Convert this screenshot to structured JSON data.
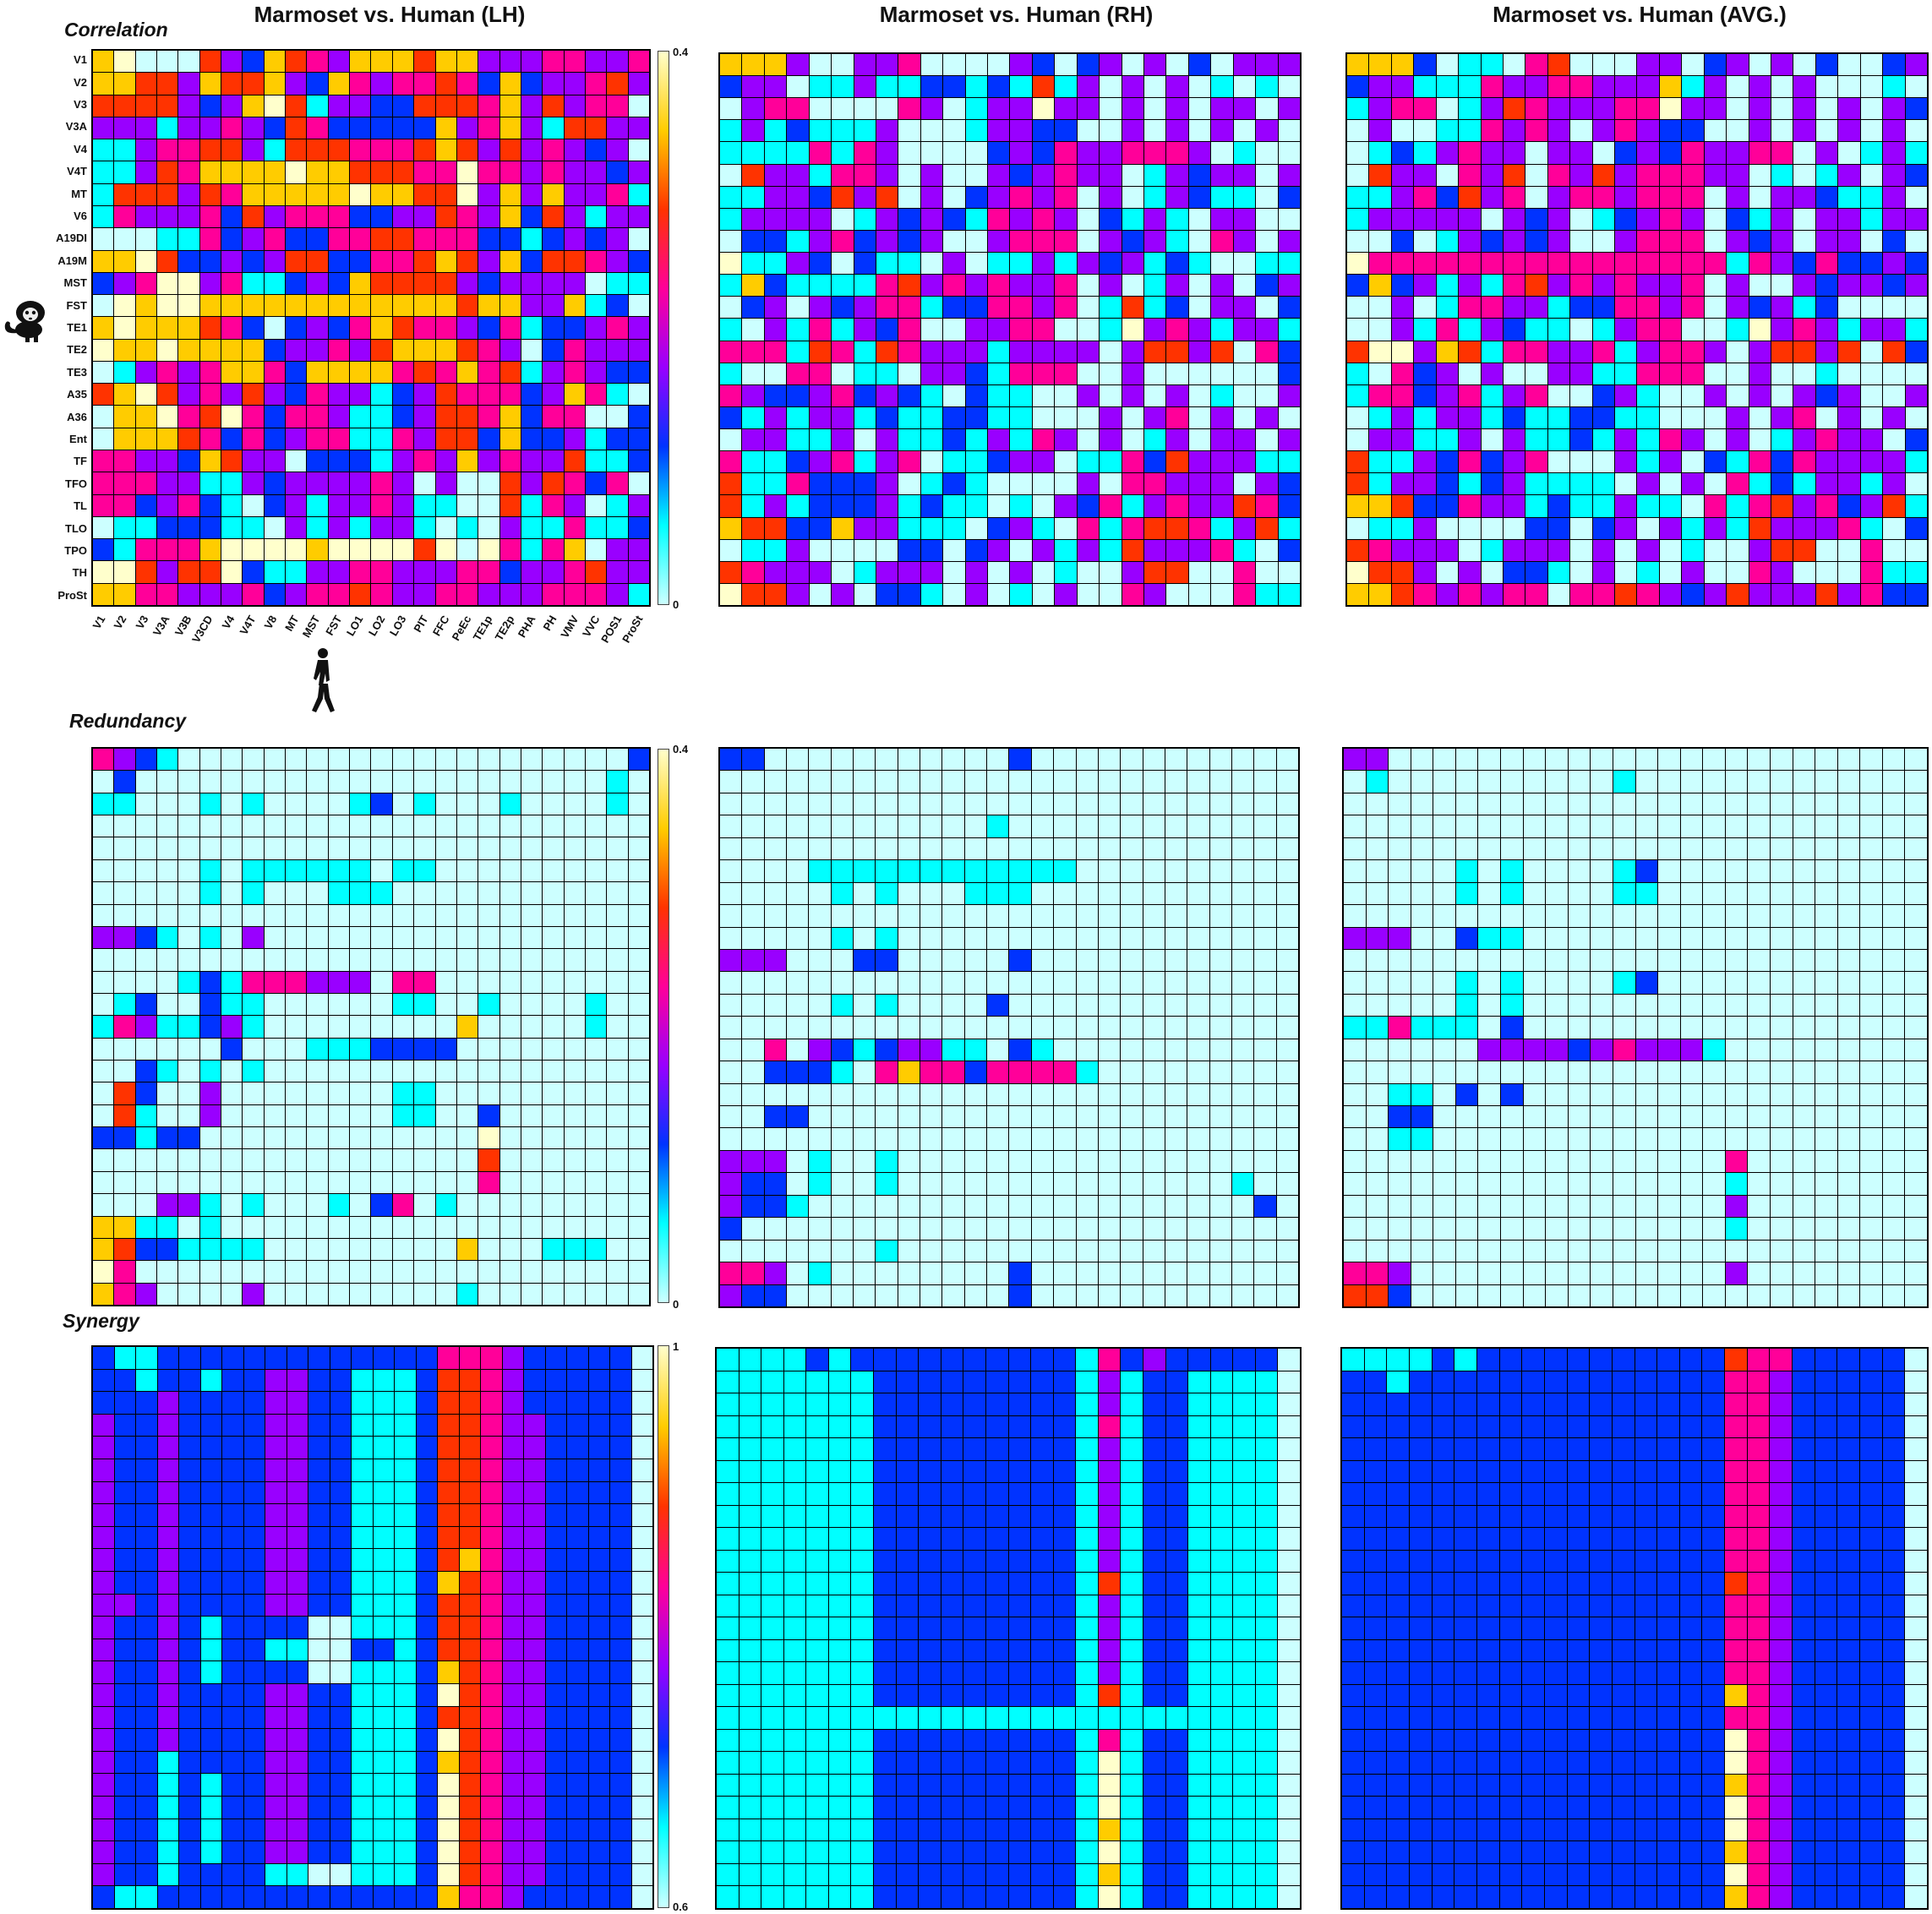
{
  "column_titles": [
    "Marmoset vs. Human (LH)",
    "Marmoset vs. Human (RH)",
    "Marmoset vs. Human (AVG.)"
  ],
  "row_titles": [
    "Correlation",
    "Redundancy",
    "Synergy"
  ],
  "icons": {
    "marmoset": "marmoset-silhouette-icon",
    "human": "walking-human-silhouette-icon"
  },
  "colormap": [
    "#ccffff",
    "#00ffff",
    "#0033ff",
    "#9900ff",
    "#ff0099",
    "#ff3300",
    "#ffcc00",
    "#ffffcc"
  ],
  "chart_data": {
    "type": "heatmap",
    "rows_marmoset": [
      "V1",
      "V2",
      "V3",
      "V3A",
      "V4",
      "V4T",
      "MT",
      "V6",
      "A19DI",
      "A19M",
      "MST",
      "FST",
      "TE1",
      "TE2",
      "TE3",
      "A35",
      "A36",
      "Ent",
      "TF",
      "TFO",
      "TL",
      "TLO",
      "TPO",
      "TH",
      "ProSt"
    ],
    "cols_human": [
      "V1",
      "V2",
      "V3",
      "V3A",
      "V3B",
      "V3CD",
      "V4",
      "V4T",
      "V8",
      "MT",
      "MST",
      "FST",
      "LO1",
      "LO2",
      "LO3",
      "PIT",
      "FFC",
      "PeEc",
      "TE1p",
      "TE2p",
      "PHA",
      "PH",
      "VMV",
      "VVC",
      "POS1",
      "ProSt"
    ],
    "colorbars": [
      {
        "min": 0,
        "max": 0.4
      },
      {
        "min": 0,
        "max": 0.4
      },
      {
        "min": 0.6,
        "max": 1
      }
    ],
    "panels": [
      {
        "row": "Correlation",
        "column": "Marmoset vs. Human (LH)",
        "values": [
          "Y8999643765477767744455445",
          "7766476674375455653734456D",
          "6666434786244336665746455A",
          "4442445436533333745742664D",
          "2245566426665556764645434A",
          "2246577778776665585545443D",
          "2666465777778776684747445B",
          "2544453645553344654736424D",
          "1112253453355665553323434A",
          "7786334346633556764736654C",
          "3458845223437666643444412B",
          "1878877777777777767744723A",
          "7877765313435765543523345D",
          "8778777734454677765413544D",
          "1245457753777756575624543C",
          "6786454643544234655534752A",
          "1778568535542234665735511C",
          "1777653534552254663733423C",
          "5544376441333245474544622C",
          "5554422434444541411646535A",
          "5534532134244542211625412D",
          "1223332214242442121422522C",
          "3255578888788886818525714D",
          "8864668322445544455344564D",
          "7755444534556544554445554B"
        ]
      },
      {
        "row": "Correlation",
        "column": "Marmoset vs. Human (RH)",
        "values": [
          "Y7741144511114313414131444",
          "3441224223323262414141212A",
          "1455111154124484414141441D",
          "2423222411124433114141414A",
          "2222525411113435445554121A",
          "1644255414114345441243441D",
          "2244364614134545141243221C",
          "2444412434325454132421441A",
          "1332453434114555143421541D",
          "8224313221412242434232112B",
          "2732222564545445141241413D",
          "1341434552335545126231441C",
          "2142524351144551128454244B",
          "5552652654442444414664615C",
          "2115512214432555114111111C",
          "5433453432132211414141211D",
          "3242442322332211141451414A",
          "1442241422324254141241441D",
          "5223452451223441225364442B",
          "6225333412321111415544414C",
          "6242333423221214352454465C",
          "7663374422213421525665246B",
          "1224111133134142426444521C",
          "6544412444141412114661151A",
          "8664141332141214115411152B"
        ]
      },
      {
        "row": "Correlation",
        "column": "Marmoset vs. Human (AVG.)",
        "values": [
          "Y7731221561114413414131134",
          "3442225445544472414141112A",
          "2455124654445584414141414C",
          "1411225454145433114141414A",
          "1232454414413435445514124B",
          "1644154615464555441212414C",
          "2245364514554555141443224A",
          "2444441434123454132414424D",
          "1131243434114555143414413A",
          "8555555555555555525435334C",
          "3734242564545445141143443D",
          "1141255442335545143423111A",
          "1142524322124551128454244B",
          "6884762554452455414664616C",
          "2153414114422555114112111A",
          "2553452451134211414143411D",
          "1242442322332211141451414A",
          "1442241422324254141245441C",
          "6224353451114241325354444B",
          "6244323422221414152324424A",
          "7763354423224221525645346B",
          "1224111133134142426444521C",
          "6544412444141412114661151A",
          "8664141332141214115411152B",
          "7765454551556543464446453C"
        ]
      },
      {
        "row": "Redundancy",
        "column": "Redundancy LH",
        "values": [
          "P4321111111111111111111113",
          "1311111111111111111111112A",
          "2211121211112312111211112A",
          "1111111111111111111111111A",
          "1111111111111111111111111A",
          "1111121222222122111111111A",
          "1111121211122211111111111A",
          "1111111111111111111111111A",
          "4432121411111111111111111A",
          "1111111111111111111111111A",
          "1111232555444155111111111A",
          "1231132211111122112111121A",
          "2542234211111111171111121A",
          "1111113111222333311111111A",
          "1132121211111111111111111A",
          "1631141111111122111111111A",
          "1621141111111122113111111A",
          "3323311111111111118111111A",
          "1111111111111111116111111A",
          "1111111111111111115111111A",
          "1114421211121351211111111A",
          "7722121111111111111111111A",
          "7633222211111111171112221A",
          "8511111111111111111111111A",
          "7541111411111111121111111A"
        ]
      },
      {
        "row": "Redundancy",
        "column": "Redundancy RH",
        "values": [
          "3311111111111311111111111A",
          "1111111111111111111111111A",
          "1111111111111111111111111A",
          "1111111111112111111111111A",
          "1111111111111111111111111A",
          "1111222222222222111111111A",
          "1111121211122211111111111A",
          "1111111111111111111111111A",
          "1111121211111111111111111A",
          "4441113311111311111111111A",
          "1111111111111111111111111A",
          "1111121211113111111111111A",
          "1111111111111111111111111A",
          "1151432344221321111111111A",
          "1133321575535555211111111A",
          "1111111111111111111111111A",
          "1133111111111111111111111A",
          "1111111111111111111111111A",
          "4441211211111111111111111A",
          "4331211211111111111111121A",
          "4332111111111111111111113A",
          "3111111111111111111111111A",
          "1111111211111111111111111A",
          "5541211111111311111111111A",
          "4331111111111311111111111A"
        ]
      },
      {
        "row": "Redundancy",
        "column": "Redundancy AVG",
        "values": [
          "4411111111111111111111111A",
          "1211111111112111111111111A",
          "1111111111111111111111111A",
          "1111111111111111111111111A",
          "1111111111111111111111111A",
          "1111121211112311111111111A",
          "1111121211112211111111111A",
          "1111111111111111111111111A",
          "4441132211111111111111111A",
          "1111111111111111111111111A",
          "1111121211112311111111111A",
          "1111121211111111111111111A",
          "2252221311111111111111111A",
          "1111114444345444211111111A",
          "1111111111111111111111111A",
          "1122131311111111111111111A",
          "1133111111111111111111111A",
          "1122111111111111111111111A",
          "1111111111111111151111111A",
          "1111111111111111121111111A",
          "1111111111111111141111111A",
          "1111111111111111121111111A",
          "1111111111111111111111111A",
          "5541111111111111141111111A",
          "6631111111111111111111111A"
        ]
      },
      {
        "row": "Synergy",
        "column": "Synergy LH",
        "values": [
          "3223333333333333555433333A",
          "3323323344332223665433333A",
          "3334333344332223665433333A",
          "4334333344332223665443333A",
          "4334333344332223665443333A",
          "4334333344332223665443333A",
          "4334333344332223665443333A",
          "4334333344332223665443333A",
          "4334333344332223665443333A",
          "4334333344332223675443333A",
          "4334333344332223765443333A",
          "4434333344332223665443333A",
          "4334323333112223665443333A",
          "4334323322113323665443333A",
          "4334323333112223765443333A",
          "4334333344332223865443333A",
          "4334333344332223665443333A",
          "4334333344332223865443333A",
          "4332333344332223765443333A",
          "4332323344332223865443333A",
          "4332323344332223865443333A",
          "4332323344332223865443333A",
          "4332323344332223865443333A",
          "4332333322112223865443333A",
          "3223333333333333755433333A"
        ]
      },
      {
        "row": "Synergy",
        "column": "Synergy RH",
        "values": [
          "2222323333333333253433333A",
          "2222222333333333242332222A",
          "2222222333333333242332222A",
          "2222222333333333252332222A",
          "2222222333333333242332222A",
          "2222222333333333242332222A",
          "2222222333333333242332222A",
          "2222222333333333242332222A",
          "2222222333333333242332222A",
          "2222222333333333242332222A",
          "2222222333333333262332222A",
          "2222222333333333242332222A",
          "2222222333333333242332222A",
          "2222222333333333242332222A",
          "2222222333333333242332222A",
          "2222222333333333262332222A",
          "2222222222222222222222222A",
          "2222222333333333252332222A",
          "2222222333333333282332222A",
          "2222222333333333282332222A",
          "2222222333333333282332222A",
          "2222222333333333272332222A",
          "2222222333333333282332222A",
          "2222222333333333272332222A",
          "2222222333333333282332222A"
        ]
      },
      {
        "row": "Synergy",
        "column": "Synergy AVG",
        "values": [
          "2222323333333333365533333A",
          "3323333333333333355433333A",
          "3333333333333333355433333A",
          "3333333333333333355433333A",
          "3333333333333333355433333A",
          "3333333333333333355433333A",
          "3333333333333333355433333A",
          "3333333333333333355433333A",
          "3333333333333333355433333A",
          "3333333333333333355433333A",
          "3333333333333333365433333A",
          "3333333333333333355433333A",
          "3333333333333333355433333A",
          "3333333333333333355433333A",
          "3333333333333333355433333A",
          "3333333333333333375433333A",
          "3333333333333333355433333A",
          "3333333333333333385433333A",
          "3333333333333333385433333A",
          "3333333333333333375433333A",
          "3333333333333333385433333A",
          "3333333333333333385433333A",
          "3333333333333333375433333A",
          "3333333333333333385433333A",
          "3333333333333333375433333A"
        ]
      }
    ]
  }
}
